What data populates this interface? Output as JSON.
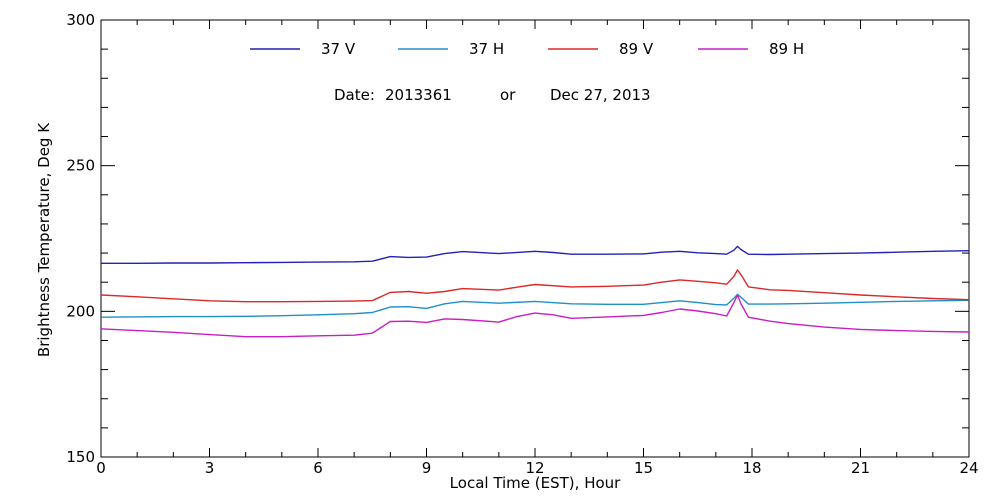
{
  "chart_data": {
    "type": "line",
    "title": "",
    "xlabel": "Local Time (EST), Hour",
    "ylabel": "Brightness Temperature, Deg K",
    "xlim": [
      0,
      24
    ],
    "ylim": [
      150,
      300
    ],
    "x_ticks": [
      0,
      3,
      6,
      9,
      12,
      15,
      18,
      21,
      24
    ],
    "y_ticks": [
      150,
      200,
      250,
      300
    ],
    "grid": false,
    "legend_position": "top-center",
    "date_label": {
      "prefix": "Date:",
      "code": "2013361",
      "connector": "or",
      "date": "Dec 27, 2013"
    },
    "series": [
      {
        "name": "37 V",
        "color": "#2222b4",
        "points": [
          [
            0,
            216.5
          ],
          [
            1,
            216.5
          ],
          [
            2,
            216.6
          ],
          [
            3,
            216.6
          ],
          [
            4,
            216.7
          ],
          [
            5,
            216.8
          ],
          [
            6,
            216.9
          ],
          [
            7,
            217
          ],
          [
            7.5,
            217.2
          ],
          [
            8,
            218.8
          ],
          [
            8.5,
            218.5
          ],
          [
            9,
            218.6
          ],
          [
            9.5,
            219.8
          ],
          [
            10,
            220.5
          ],
          [
            11,
            219.8
          ],
          [
            12,
            220.6
          ],
          [
            12.5,
            220.2
          ],
          [
            13,
            219.6
          ],
          [
            14,
            219.6
          ],
          [
            15,
            219.7
          ],
          [
            15.5,
            220.3
          ],
          [
            16,
            220.6
          ],
          [
            16.5,
            220.1
          ],
          [
            17,
            219.8
          ],
          [
            17.3,
            219.6
          ],
          [
            17.5,
            221
          ],
          [
            17.6,
            222.3
          ],
          [
            17.7,
            221.2
          ],
          [
            17.9,
            219.6
          ],
          [
            18.5,
            219.5
          ],
          [
            19,
            219.6
          ],
          [
            20,
            219.8
          ],
          [
            21,
            220
          ],
          [
            22,
            220.3
          ],
          [
            23,
            220.6
          ],
          [
            24,
            220.8
          ]
        ]
      },
      {
        "name": "37 H",
        "color": "#1e90c8",
        "points": [
          [
            0,
            198
          ],
          [
            1,
            198.1
          ],
          [
            2,
            198.2
          ],
          [
            3,
            198.2
          ],
          [
            4,
            198.3
          ],
          [
            5,
            198.5
          ],
          [
            6,
            198.8
          ],
          [
            7,
            199.2
          ],
          [
            7.5,
            199.6
          ],
          [
            8,
            201.5
          ],
          [
            8.5,
            201.6
          ],
          [
            9,
            201
          ],
          [
            9.5,
            202.6
          ],
          [
            10,
            203.4
          ],
          [
            11,
            202.8
          ],
          [
            12,
            203.4
          ],
          [
            13,
            202.6
          ],
          [
            14,
            202.4
          ],
          [
            15,
            202.4
          ],
          [
            15.5,
            203
          ],
          [
            16,
            203.6
          ],
          [
            16.5,
            203
          ],
          [
            17,
            202.3
          ],
          [
            17.3,
            202.2
          ],
          [
            17.5,
            204.5
          ],
          [
            17.6,
            205.8
          ],
          [
            17.7,
            204.8
          ],
          [
            17.9,
            202.5
          ],
          [
            18.5,
            202.5
          ],
          [
            19,
            202.6
          ],
          [
            20,
            202.8
          ],
          [
            21,
            203.1
          ],
          [
            22,
            203.4
          ],
          [
            23,
            203.6
          ],
          [
            24,
            203.8
          ]
        ]
      },
      {
        "name": "89 V",
        "color": "#dc2828",
        "points": [
          [
            0,
            205.6
          ],
          [
            1,
            205
          ],
          [
            2,
            204.3
          ],
          [
            3,
            203.6
          ],
          [
            4,
            203.3
          ],
          [
            5,
            203.3
          ],
          [
            6,
            203.4
          ],
          [
            7,
            203.5
          ],
          [
            7.5,
            203.7
          ],
          [
            8,
            206.5
          ],
          [
            8.5,
            206.8
          ],
          [
            9,
            206.2
          ],
          [
            9.5,
            206.8
          ],
          [
            10,
            207.8
          ],
          [
            11,
            207.3
          ],
          [
            11.5,
            208.3
          ],
          [
            12,
            209.2
          ],
          [
            13,
            208.4
          ],
          [
            14,
            208.6
          ],
          [
            15,
            209
          ],
          [
            15.5,
            210
          ],
          [
            16,
            210.8
          ],
          [
            16.5,
            210.3
          ],
          [
            17,
            209.8
          ],
          [
            17.3,
            209.3
          ],
          [
            17.5,
            212
          ],
          [
            17.6,
            214.2
          ],
          [
            17.7,
            212.5
          ],
          [
            17.9,
            208.4
          ],
          [
            18.5,
            207.4
          ],
          [
            19,
            207.2
          ],
          [
            20,
            206.4
          ],
          [
            21,
            205.6
          ],
          [
            22,
            205
          ],
          [
            23,
            204.4
          ],
          [
            24,
            204
          ]
        ]
      },
      {
        "name": "89 H",
        "color": "#c81ec8",
        "points": [
          [
            0,
            194
          ],
          [
            1,
            193.4
          ],
          [
            2,
            192.8
          ],
          [
            3,
            192
          ],
          [
            4,
            191.3
          ],
          [
            5,
            191.3
          ],
          [
            6,
            191.6
          ],
          [
            7,
            191.8
          ],
          [
            7.5,
            192.5
          ],
          [
            8,
            196.5
          ],
          [
            8.5,
            196.6
          ],
          [
            9,
            196.2
          ],
          [
            9.5,
            197.4
          ],
          [
            10,
            197.2
          ],
          [
            11,
            196.3
          ],
          [
            11.5,
            198.2
          ],
          [
            12,
            199.4
          ],
          [
            12.5,
            198.8
          ],
          [
            13,
            197.6
          ],
          [
            14,
            198.1
          ],
          [
            15,
            198.6
          ],
          [
            15.5,
            199.6
          ],
          [
            16,
            200.8
          ],
          [
            16.5,
            200.1
          ],
          [
            17,
            199.2
          ],
          [
            17.3,
            198.4
          ],
          [
            17.5,
            203
          ],
          [
            17.6,
            205.6
          ],
          [
            17.7,
            202.5
          ],
          [
            17.9,
            198
          ],
          [
            18.5,
            196.6
          ],
          [
            19,
            195.8
          ],
          [
            20,
            194.6
          ],
          [
            21,
            193.8
          ],
          [
            22,
            193.4
          ],
          [
            23,
            193.1
          ],
          [
            24,
            192.9
          ]
        ]
      }
    ]
  }
}
